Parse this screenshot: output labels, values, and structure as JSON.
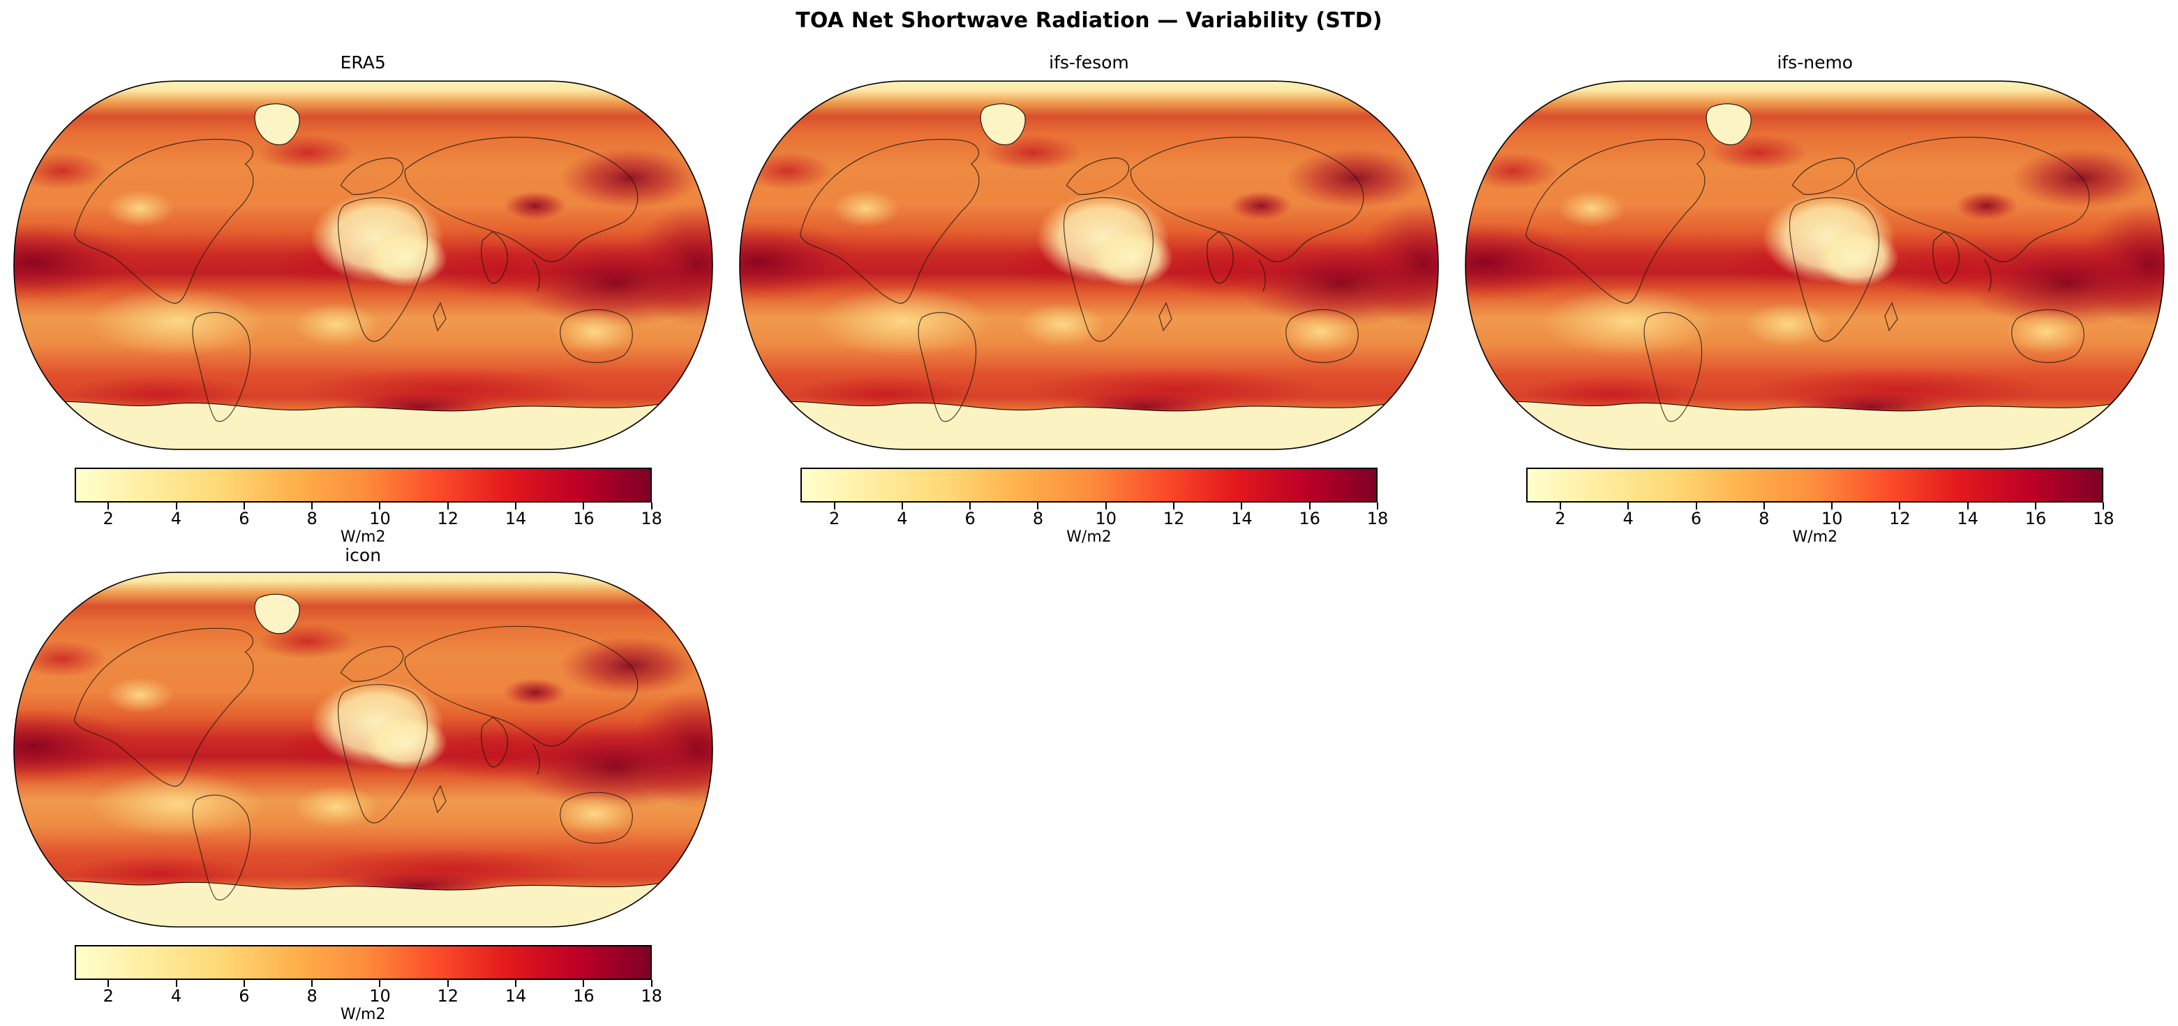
{
  "figure": {
    "title": "TOA Net Shortwave Radiation — Variability (STD)"
  },
  "chart_data": {
    "type": "heatmap",
    "title": "TOA Net Shortwave Radiation — Variability (STD)",
    "projection": "Robinson world map",
    "panels": [
      {
        "title": "ERA5"
      },
      {
        "title": "ifs-fesom"
      },
      {
        "title": "ifs-nemo"
      },
      {
        "title": "icon"
      }
    ],
    "colorbar": {
      "label": "W/m2",
      "ticks": [
        2,
        4,
        6,
        8,
        10,
        12,
        14,
        16,
        18
      ],
      "vmin": 1,
      "vmax": 18,
      "colormap": "YlOrRd",
      "colors": [
        "#ffffcc",
        "#ffeda0",
        "#fed976",
        "#feb24c",
        "#fd8d3c",
        "#fc4e2a",
        "#e31a1c",
        "#bd0026",
        "#800026"
      ]
    },
    "value_summary": "STD of TOA net shortwave radiation: highest variability (dark red, ~14-18 W/m2) along tropical convergence zones, western Pacific, East Asia and mid-latitude storm tracks; lowest (pale yellow, ~1-3 W/m2) over the Sahara, Arabia, Greenland, Antarctica and subtropical eastern-ocean regions."
  }
}
